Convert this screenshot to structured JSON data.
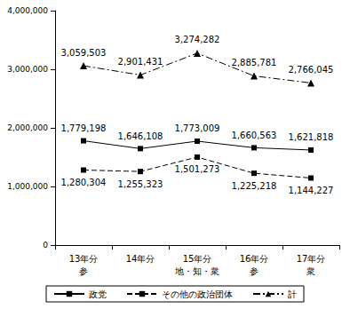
{
  "chart_data": {
    "type": "line",
    "categories": [
      "13年分\n参",
      "14年分",
      "15年分\n地・知・衆",
      "16年分\n参",
      "17年分\n衆"
    ],
    "series": [
      {
        "name": "政党",
        "color": "#000000",
        "marker": "square",
        "line_style": "solid",
        "values": [
          1779198,
          1646108,
          1773009,
          1660563,
          1621818
        ],
        "value_labels": [
          "1,779,198",
          "1,646,108",
          "1,773,009",
          "1,660,563",
          "1,621,818"
        ]
      },
      {
        "name": "その他の政治団体",
        "color": "#000000",
        "marker": "square",
        "line_style": "dashed",
        "values": [
          1280304,
          1255323,
          1501273,
          1225218,
          1144227
        ],
        "value_labels": [
          "1,280,304",
          "1,255,323",
          "1,501,273",
          "1,225,218",
          "1,144,227"
        ]
      },
      {
        "name": "計",
        "color": "#000000",
        "marker": "triangle",
        "line_style": "dash-dot",
        "values": [
          3059503,
          2901431,
          3274282,
          2885781,
          2766045
        ],
        "value_labels": [
          "3,059,503",
          "2,901,431",
          "3,274,282",
          "2,885,781",
          "2,766,045"
        ]
      }
    ],
    "ylim": [
      0,
      4000000
    ],
    "yticks": [
      0,
      {
        "value": 1000000,
        "label": "1,000,000"
      },
      {
        "value": 2000000,
        "label": "2,000,000"
      },
      {
        "value": 3000000,
        "label": "3,000,000"
      },
      {
        "value": 4000000,
        "label": "4,000,000"
      }
    ],
    "grid": false,
    "data_labels": true,
    "legend": "bottom"
  }
}
